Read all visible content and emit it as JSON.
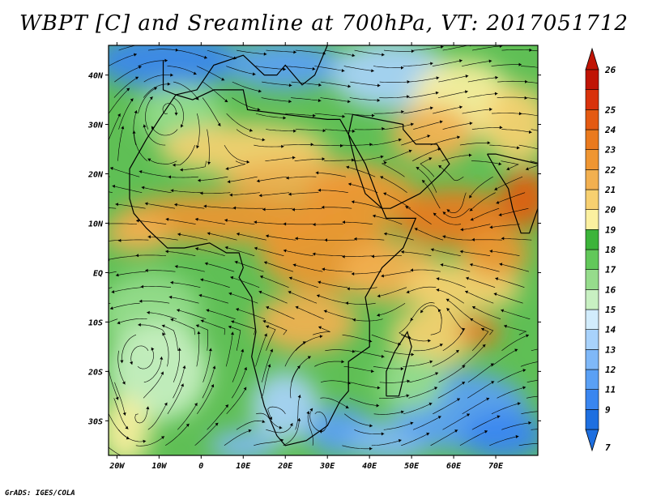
{
  "title": "WBPT [C] and Sreamline at 700hPa, VT: 2017051712",
  "credit": "GrADS: IGES/COLA",
  "map": {
    "variable": "Wet-bulb potential temperature",
    "units": "C",
    "level": "700hPa",
    "valid_time": "2017051712",
    "lon_range": [
      -22,
      80
    ],
    "lat_range": [
      -37,
      46
    ],
    "lat_ticks": [
      {
        "value": 40,
        "label": "40N"
      },
      {
        "value": 30,
        "label": "30N"
      },
      {
        "value": 20,
        "label": "20N"
      },
      {
        "value": 10,
        "label": "10N"
      },
      {
        "value": 0,
        "label": "EQ"
      },
      {
        "value": -10,
        "label": "10S"
      },
      {
        "value": -20,
        "label": "20S"
      },
      {
        "value": -30,
        "label": "30S"
      }
    ],
    "lon_ticks": [
      {
        "value": -20,
        "label": "20W"
      },
      {
        "value": -10,
        "label": "10W"
      },
      {
        "value": 0,
        "label": "0"
      },
      {
        "value": 10,
        "label": "10E"
      },
      {
        "value": 20,
        "label": "20E"
      },
      {
        "value": 30,
        "label": "30E"
      },
      {
        "value": 40,
        "label": "40E"
      },
      {
        "value": 50,
        "label": "50E"
      },
      {
        "value": 60,
        "label": "60E"
      },
      {
        "value": 70,
        "label": "70E"
      }
    ]
  },
  "colorbar": {
    "levels": [
      "7",
      "9",
      "11",
      "12",
      "13",
      "14",
      "15",
      "16",
      "17",
      "18",
      "19",
      "20",
      "21",
      "22",
      "23",
      "24",
      "25",
      "26"
    ],
    "colors": [
      "#1e6fe0",
      "#3a86f0",
      "#5aa0f5",
      "#7fb8f8",
      "#a8d2fb",
      "#d2ecfc",
      "#c8f0c2",
      "#96dc8c",
      "#62c85a",
      "#3cb43a",
      "#fbf0a0",
      "#f7d070",
      "#f2b050",
      "#ef9632",
      "#ea7a1e",
      "#e45a12",
      "#d8320c",
      "#c01405"
    ]
  }
}
